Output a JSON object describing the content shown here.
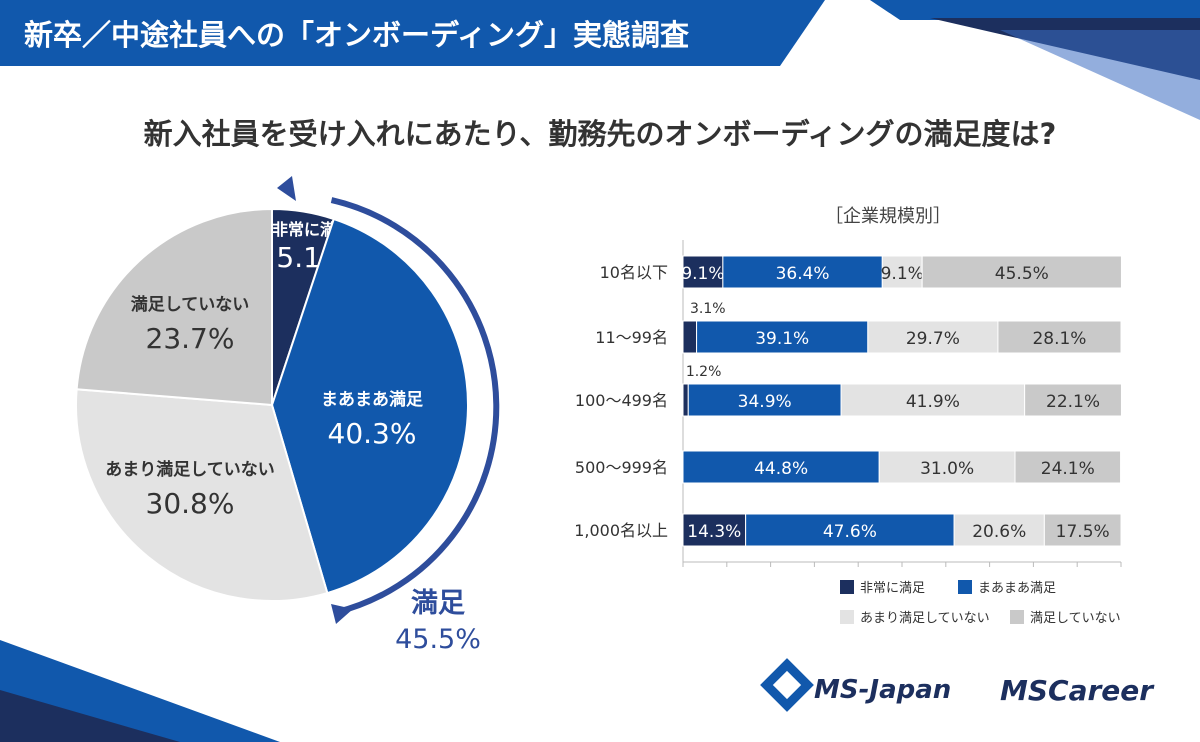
{
  "header": {
    "title": "新卒／中途社員への「オンボーディング」実態調査"
  },
  "question": "新入社員を受け入れにあたり、勤務先のオンボーディングの満足度は?",
  "colors": {
    "very_satisfied": "#1c2f5e",
    "satisfied": "#1158ac",
    "somewhat_unsatisfied": "#e3e3e3",
    "unsatisfied": "#c9c9c9",
    "accent": "#2e4d9c"
  },
  "chart_data": [
    {
      "type": "pie",
      "title": "",
      "categories": [
        "非常に満足",
        "まあまあ満足",
        "あまり満足していない",
        "満足していない"
      ],
      "values": [
        5.1,
        40.3,
        30.8,
        23.7
      ],
      "value_labels": [
        "5.1%",
        "40.3%",
        "30.8%",
        "23.7%"
      ],
      "annotation": {
        "label": "満足",
        "value": "45.5%"
      }
    },
    {
      "type": "bar",
      "stacked": true,
      "orientation": "horizontal",
      "title": "［企業規模別］",
      "categories": [
        "10名以下",
        "11〜99名",
        "100〜499名",
        "500〜999名",
        "1,000名以上"
      ],
      "series": [
        {
          "name": "非常に満足",
          "values": [
            9.1,
            3.1,
            1.2,
            0,
            14.3
          ],
          "labels": [
            "9.1%",
            "3.1%",
            "1.2%",
            "",
            "14.3%"
          ]
        },
        {
          "name": "まあまあ満足",
          "values": [
            36.4,
            39.1,
            34.9,
            44.8,
            47.6
          ],
          "labels": [
            "36.4%",
            "39.1%",
            "34.9%",
            "44.8%",
            "47.6%"
          ]
        },
        {
          "name": "あまり満足していない",
          "values": [
            9.1,
            29.7,
            41.9,
            31.0,
            20.6
          ],
          "labels": [
            "9.1%",
            "29.7%",
            "41.9%",
            "31.0%",
            "20.6%"
          ]
        },
        {
          "name": "満足していない",
          "values": [
            45.5,
            28.1,
            22.1,
            24.1,
            17.5
          ],
          "labels": [
            "45.5%",
            "28.1%",
            "22.1%",
            "24.1%",
            "17.5%"
          ]
        }
      ],
      "xlim": [
        0,
        100
      ],
      "legend": "bottom"
    }
  ],
  "logos": {
    "ms_japan": "MS-Japan",
    "ms_career": "MSCareer"
  }
}
